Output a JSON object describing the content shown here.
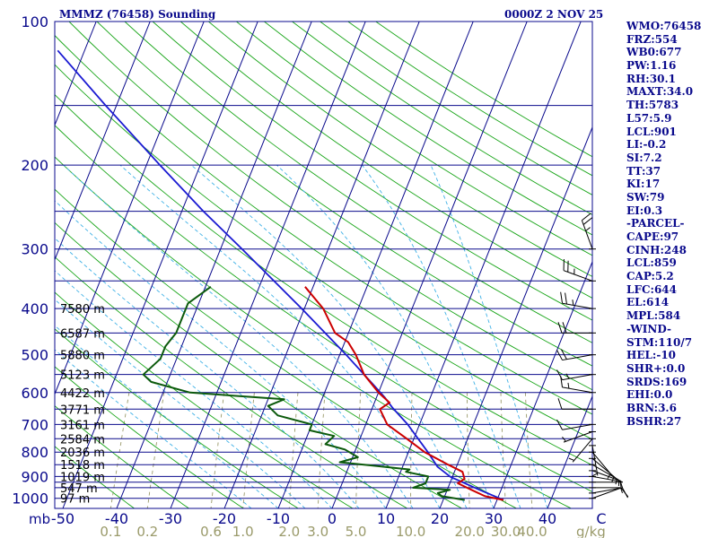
{
  "header": {
    "station": "MMMZ (76458) Sounding",
    "datetime": "0000Z  2 NOV 25"
  },
  "colors": {
    "frame": "#0a0a8c",
    "isobar": "#0a0a8c",
    "isotherm": "#0a0a8c",
    "dry_adiabat": "#19a519",
    "moist_adiabat": "#3fb1e6",
    "mixing_ratio": "#9a9a6a",
    "temperature": "#cc0000",
    "dewpoint": "#0c5a0c",
    "parcel": "#1a1ad2",
    "height_labels": "#000000",
    "temp_tick_labels": "#0a0a8c",
    "mixing_labels": "#9a9a6a",
    "wind": "#000000"
  },
  "stats": [
    "WMO:76458",
    "FRZ:554",
    "WB0:677",
    "PW:1.16",
    "RH:30.1",
    "MAXT:34.0",
    "TH:5783",
    "L57:5.9",
    "LCL:901",
    "LI:-0.2",
    "SI:7.2",
    "TT:37",
    "KI:17",
    "SW:79",
    "EI:0.3",
    "-PARCEL-",
    "CAPE:97",
    "CINH:248",
    "LCL:859",
    "CAP:5.2",
    "LFC:644",
    "EL:614",
    "MPL:584",
    "-WIND-",
    "STM:110/7",
    "HEL:-10",
    "SHR+:0.0",
    "SRDS:169",
    "EHI:0.0",
    "BRN:3.6",
    "BSHR:27"
  ],
  "chart_data": {
    "type": "skew-t",
    "p_top": 100,
    "p_bottom": 1050,
    "t_range": [
      -50,
      50
    ],
    "pressure_units_label": "mb",
    "pressure_labels": [
      {
        "p": 100,
        "label": "100"
      },
      {
        "p": 200,
        "label": "200"
      },
      {
        "p": 300,
        "label": "300"
      },
      {
        "p": 400,
        "label": "400"
      },
      {
        "p": 500,
        "label": "500"
      },
      {
        "p": 600,
        "label": "600"
      },
      {
        "p": 700,
        "label": "700"
      },
      {
        "p": 800,
        "label": "800"
      },
      {
        "p": 900,
        "label": "900"
      },
      {
        "p": 1000,
        "label": "1000"
      }
    ],
    "isobars": [
      100,
      150,
      200,
      250,
      300,
      350,
      400,
      450,
      500,
      550,
      600,
      650,
      700,
      750,
      800,
      850,
      900,
      925,
      950,
      1000
    ],
    "temperature_ticks": [
      {
        "t": -50,
        "label": "-50"
      },
      {
        "t": -40,
        "label": "-40"
      },
      {
        "t": -30,
        "label": "-30"
      },
      {
        "t": -20,
        "label": "-20"
      },
      {
        "t": -10,
        "label": "-10"
      },
      {
        "t": 0,
        "label": "0"
      },
      {
        "t": 10,
        "label": "10"
      },
      {
        "t": 20,
        "label": "20"
      },
      {
        "t": 30,
        "label": "30"
      },
      {
        "t": 40,
        "label": "40"
      },
      {
        "t": 50,
        "label": "C"
      }
    ],
    "mixing_ratio_lines": [
      {
        "w": 0.1,
        "label": "0.1"
      },
      {
        "w": 0.2,
        "label": "0.2"
      },
      {
        "w": 0.6,
        "label": "0.6"
      },
      {
        "w": 1.0,
        "label": "1.0"
      },
      {
        "w": 2.0,
        "label": "2.0"
      },
      {
        "w": 3.0,
        "label": "3.0"
      },
      {
        "w": 5.0,
        "label": "5.0"
      },
      {
        "w": 10.0,
        "label": "10.0"
      },
      {
        "w": 20.0,
        "label": "20.0"
      },
      {
        "w": 30.0,
        "label": "30.0"
      },
      {
        "w": 40.0,
        "label": "40.0"
      }
    ],
    "mixing_units_label": "g/kg",
    "height_labels": [
      {
        "p": 400,
        "label": "7580 m"
      },
      {
        "p": 450,
        "label": "6587 m"
      },
      {
        "p": 500,
        "label": "5880 m"
      },
      {
        "p": 550,
        "label": "5123 m"
      },
      {
        "p": 600,
        "label": "4422 m"
      },
      {
        "p": 650,
        "label": "3771 m"
      },
      {
        "p": 700,
        "label": "3161 m"
      },
      {
        "p": 750,
        "label": "2584 m"
      },
      {
        "p": 800,
        "label": "2036 m"
      },
      {
        "p": 850,
        "label": "1518 m"
      },
      {
        "p": 900,
        "label": "1019 m"
      },
      {
        "p": 950,
        "label": "547 m"
      },
      {
        "p": 1000,
        "label": "97 m"
      }
    ],
    "temperature": [
      [
        1008,
        31.2
      ],
      [
        990,
        27.5
      ],
      [
        960,
        24.5
      ],
      [
        930,
        21.5
      ],
      [
        910,
        22.4
      ],
      [
        880,
        21.5
      ],
      [
        850,
        18.3
      ],
      [
        800,
        13.0
      ],
      [
        750,
        8.7
      ],
      [
        700,
        4.0
      ],
      [
        650,
        1.5
      ],
      [
        630,
        2.8
      ],
      [
        600,
        0.0
      ],
      [
        550,
        -4.0
      ],
      [
        500,
        -7.0
      ],
      [
        470,
        -9.4
      ],
      [
        450,
        -12.5
      ],
      [
        400,
        -16.5
      ],
      [
        360,
        -21.5
      ]
    ],
    "dewpoint": [
      [
        1008,
        24.0
      ],
      [
        990,
        19.5
      ],
      [
        975,
        18.5
      ],
      [
        960,
        20.5
      ],
      [
        950,
        13.5
      ],
      [
        930,
        15.5
      ],
      [
        900,
        15.5
      ],
      [
        880,
        11.0
      ],
      [
        870,
        11.5
      ],
      [
        855,
        5.0
      ],
      [
        840,
        -2.0
      ],
      [
        820,
        1.0
      ],
      [
        790,
        -2.0
      ],
      [
        770,
        -6.0
      ],
      [
        740,
        -5.0
      ],
      [
        720,
        -10.0
      ],
      [
        700,
        -10.0
      ],
      [
        670,
        -17.0
      ],
      [
        640,
        -19.5
      ],
      [
        620,
        -17.0
      ],
      [
        600,
        -35.0
      ],
      [
        570,
        -43.0
      ],
      [
        550,
        -45.0
      ],
      [
        510,
        -43.0
      ],
      [
        480,
        -43.0
      ],
      [
        450,
        -42.0
      ],
      [
        420,
        -42.0
      ],
      [
        390,
        -42.0
      ],
      [
        360,
        -39.0
      ]
    ],
    "parcel": [
      [
        1008,
        31.2
      ],
      [
        960,
        26.0
      ],
      [
        901,
        19.6
      ],
      [
        859,
        16.5
      ],
      [
        800,
        13.6
      ],
      [
        700,
        7.8
      ],
      [
        644,
        3.6
      ],
      [
        614,
        1.5
      ],
      [
        584,
        -1.0
      ],
      [
        500,
        -8.8
      ],
      [
        400,
        -20.5
      ],
      [
        300,
        -36.0
      ],
      [
        250,
        -46.0
      ],
      [
        200,
        -57.5
      ],
      [
        150,
        -72.0
      ],
      [
        115,
        -85.0
      ]
    ],
    "wind_barbs": [
      {
        "p": 1000,
        "dir": 70,
        "spd": 10
      },
      {
        "p": 975,
        "dir": 80,
        "spd": 10
      },
      {
        "p": 950,
        "dir": 90,
        "spd": 5
      },
      {
        "p": 925,
        "dir": 90,
        "spd": 5
      },
      {
        "p": 900,
        "dir": 100,
        "spd": 5
      },
      {
        "p": 875,
        "dir": 110,
        "spd": 5
      },
      {
        "p": 850,
        "dir": 120,
        "spd": 5
      },
      {
        "p": 825,
        "dir": 130,
        "spd": 5
      },
      {
        "p": 800,
        "dir": 140,
        "spd": 5
      },
      {
        "p": 775,
        "dir": 170,
        "spd": 5
      },
      {
        "p": 750,
        "dir": 220,
        "spd": 5
      },
      {
        "p": 725,
        "dir": 250,
        "spd": 5
      },
      {
        "p": 700,
        "dir": 260,
        "spd": 10
      },
      {
        "p": 650,
        "dir": 270,
        "spd": 10
      },
      {
        "p": 600,
        "dir": 280,
        "spd": 15
      },
      {
        "p": 550,
        "dir": 260,
        "spd": 15
      },
      {
        "p": 500,
        "dir": 260,
        "spd": 20
      },
      {
        "p": 450,
        "dir": 270,
        "spd": 20
      },
      {
        "p": 400,
        "dir": 280,
        "spd": 25
      },
      {
        "p": 350,
        "dir": 290,
        "spd": 25
      },
      {
        "p": 300,
        "dir": 340,
        "spd": 25
      }
    ]
  }
}
